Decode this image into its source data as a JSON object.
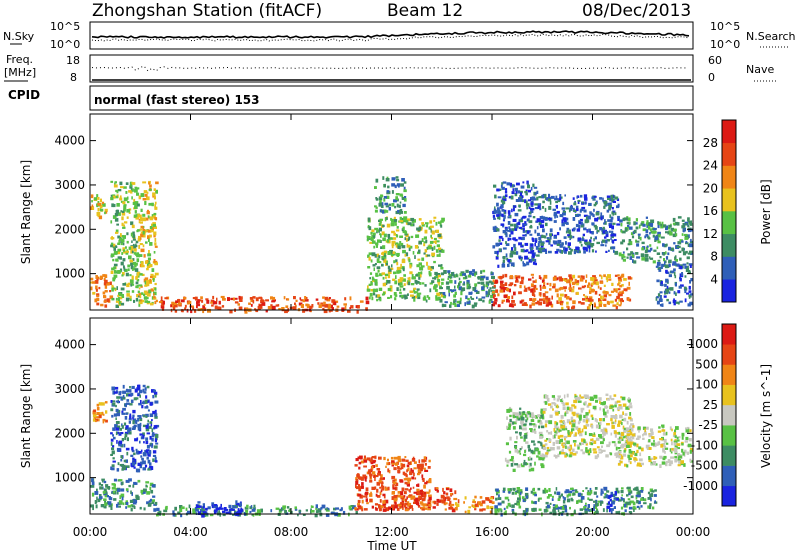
{
  "header": {
    "station": "Zhongshan Station (fitACF)",
    "beam": "Beam 12",
    "date": "08/Dec/2013"
  },
  "top_panel": {
    "left_label": "N.Sky",
    "right_label": "N.Search",
    "left_ticks": [
      "10^5",
      "10^0"
    ],
    "right_ticks": [
      "10^5",
      "10^0"
    ]
  },
  "freq_panel": {
    "left_label_1": "Freq.",
    "left_label_2": "[MHz]",
    "right_label": "Nave",
    "left_ticks": [
      "18",
      "8"
    ],
    "right_ticks": [
      "60",
      "0"
    ]
  },
  "cpid_panel": {
    "label": "CPID",
    "text": "normal (fast stereo) 153"
  },
  "chart_data": [
    {
      "type": "heatmap",
      "name": "power",
      "ylabel": "Slant Range [km]",
      "yticks": [
        1000,
        2000,
        3000,
        4000
      ],
      "ylim": [
        180,
        4600
      ],
      "xlim": [
        0,
        24
      ],
      "colorbar": {
        "label": "Power [dB]",
        "ticks": [
          "4",
          "8",
          "12",
          "16",
          "20",
          "24",
          "28"
        ],
        "colors": [
          "#1a24e0",
          "#2f5fb8",
          "#3d8c63",
          "#58c144",
          "#e8c21e",
          "#f08516",
          "#e64515",
          "#dc1a14"
        ]
      },
      "echo_regions": [
        {
          "t": [
            0.0,
            0.8
          ],
          "r": [
            300,
            1000
          ],
          "level": 5
        },
        {
          "t": [
            0.0,
            0.6
          ],
          "r": [
            2300,
            2800
          ],
          "level": 4
        },
        {
          "t": [
            0.8,
            1.9
          ],
          "r": [
            300,
            3100
          ],
          "level": 3
        },
        {
          "t": [
            1.9,
            2.6
          ],
          "r": [
            300,
            3100
          ],
          "level": 4
        },
        {
          "t": [
            2.6,
            11.0
          ],
          "r": [
            180,
            500
          ],
          "level": 6
        },
        {
          "t": [
            11.0,
            14.0
          ],
          "r": [
            400,
            2300
          ],
          "level": 3
        },
        {
          "t": [
            11.3,
            12.5
          ],
          "r": [
            2400,
            3200
          ],
          "level": 2
        },
        {
          "t": [
            14.0,
            16.0
          ],
          "r": [
            300,
            1100
          ],
          "level": 2
        },
        {
          "t": [
            16.0,
            18.6
          ],
          "r": [
            300,
            1000
          ],
          "level": 6
        },
        {
          "t": [
            16.0,
            17.8
          ],
          "r": [
            1200,
            3100
          ],
          "level": 1
        },
        {
          "t": [
            17.8,
            21.0
          ],
          "r": [
            1500,
            2800
          ],
          "level": 1
        },
        {
          "t": [
            18.6,
            21.5
          ],
          "r": [
            250,
            1000
          ],
          "level": 5
        },
        {
          "t": [
            21.0,
            23.9
          ],
          "r": [
            1300,
            2300
          ],
          "level": 2
        },
        {
          "t": [
            22.5,
            23.9
          ],
          "r": [
            300,
            1300
          ],
          "level": 1
        }
      ]
    },
    {
      "type": "heatmap",
      "name": "velocity",
      "ylabel": "Slant Range [km]",
      "yticks": [
        1000,
        2000,
        3000,
        4000
      ],
      "ylim": [
        180,
        4600
      ],
      "xlim": [
        0,
        24
      ],
      "xticks": [
        "00:00",
        "04:00",
        "08:00",
        "12:00",
        "16:00",
        "20:00",
        "00:00"
      ],
      "xlabel": "Time UT",
      "colorbar": {
        "label": "Velocity [m s^-1]",
        "ticks": [
          "1000",
          "500",
          "100",
          "25",
          "-25",
          "-100",
          "-500",
          "-1000"
        ],
        "colors": [
          "#1a24e0",
          "#2f5fb8",
          "#3d8c63",
          "#58c144",
          "#c8c8c0",
          "#e8c21e",
          "#f08516",
          "#e64515",
          "#dc1a14"
        ]
      },
      "echo_regions": [
        {
          "t": [
            0.0,
            2.6
          ],
          "r": [
            300,
            1000
          ],
          "level": 2
        },
        {
          "t": [
            0.0,
            0.6
          ],
          "r": [
            2300,
            2800
          ],
          "level": 6
        },
        {
          "t": [
            0.8,
            2.6
          ],
          "r": [
            1200,
            3100
          ],
          "level": 1
        },
        {
          "t": [
            2.6,
            11.0
          ],
          "r": [
            180,
            400
          ],
          "level": 2
        },
        {
          "t": [
            4.0,
            6.0
          ],
          "r": [
            180,
            500
          ],
          "level": 0
        },
        {
          "t": [
            10.5,
            13.5
          ],
          "r": [
            300,
            1500
          ],
          "level": 7
        },
        {
          "t": [
            12.0,
            14.5
          ],
          "r": [
            300,
            800
          ],
          "level": 7
        },
        {
          "t": [
            14.5,
            16.0
          ],
          "r": [
            250,
            600
          ],
          "level": 6
        },
        {
          "t": [
            16.0,
            22.5
          ],
          "r": [
            200,
            800
          ],
          "level": 2
        },
        {
          "t": [
            16.5,
            18.0
          ],
          "r": [
            1200,
            2600
          ],
          "level": 3
        },
        {
          "t": [
            18.0,
            21.5
          ],
          "r": [
            1500,
            2900
          ],
          "level": 4
        },
        {
          "t": [
            21.0,
            23.9
          ],
          "r": [
            1300,
            2200
          ],
          "level": 4
        },
        {
          "t": [
            20.5,
            21.0
          ],
          "r": [
            250,
            700
          ],
          "level": 0
        }
      ]
    }
  ]
}
